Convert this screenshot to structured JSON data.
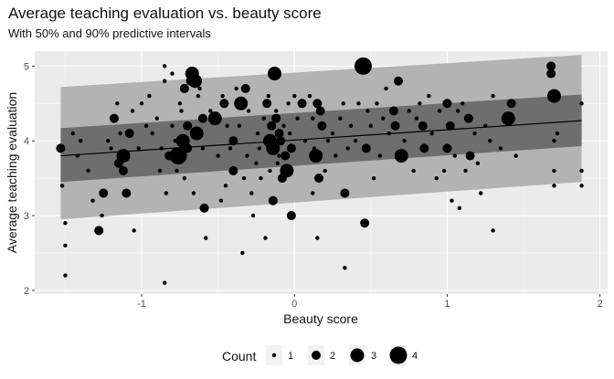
{
  "chart_data": {
    "type": "scatter",
    "title": "Average teaching evaluation vs. beauty score",
    "subtitle": "With 50% and 90% predictive intervals",
    "xlabel": "Beauty score",
    "ylabel": "Average teaching evaluation",
    "xlim": [
      -1.7,
      2.05
    ],
    "ylim": [
      1.95,
      5.2
    ],
    "x_ticks": [
      -1,
      0,
      1,
      2
    ],
    "y_ticks": [
      2,
      3,
      4,
      5
    ],
    "grid": true,
    "fit_line": {
      "x": [
        -1.53,
        1.88
      ],
      "y": [
        3.8,
        4.27
      ]
    },
    "intervals": [
      {
        "level": "90%",
        "x": [
          -1.53,
          1.88
        ],
        "lower": [
          2.95,
          3.45
        ],
        "upper": [
          4.72,
          5.15
        ]
      },
      {
        "level": "50%",
        "x": [
          -1.53,
          1.88
        ],
        "lower": [
          3.45,
          3.93
        ],
        "upper": [
          4.17,
          4.62
        ]
      }
    ],
    "legend": {
      "title": "Count",
      "position": "bottom",
      "sizes": [
        1,
        2,
        3,
        4
      ],
      "labels": [
        "1",
        "2",
        "3",
        "4"
      ]
    },
    "points": [
      [
        -1.53,
        3.9,
        2
      ],
      [
        -1.52,
        3.4,
        1
      ],
      [
        -1.5,
        2.9,
        1
      ],
      [
        -1.5,
        2.6,
        1
      ],
      [
        -1.5,
        2.2,
        1
      ],
      [
        -1.45,
        4.1,
        1
      ],
      [
        -1.42,
        3.8,
        1
      ],
      [
        -1.4,
        4.0,
        1
      ],
      [
        -1.35,
        3.6,
        1
      ],
      [
        -1.32,
        3.2,
        1
      ],
      [
        -1.28,
        2.8,
        2
      ],
      [
        -1.26,
        3.0,
        1
      ],
      [
        -1.25,
        3.3,
        2
      ],
      [
        -1.22,
        4.0,
        1
      ],
      [
        -1.2,
        3.9,
        1
      ],
      [
        -1.18,
        4.3,
        2
      ],
      [
        -1.16,
        4.5,
        1
      ],
      [
        -1.15,
        3.7,
        2
      ],
      [
        -1.14,
        4.1,
        1
      ],
      [
        -1.12,
        3.6,
        2
      ],
      [
        -1.12,
        3.8,
        3
      ],
      [
        -1.1,
        3.3,
        2
      ],
      [
        -1.08,
        4.1,
        2
      ],
      [
        -1.06,
        4.4,
        1
      ],
      [
        -1.05,
        2.8,
        1
      ],
      [
        -1.02,
        3.9,
        1
      ],
      [
        -1.0,
        4.5,
        1
      ],
      [
        -0.97,
        4.2,
        1
      ],
      [
        -0.95,
        4.6,
        1
      ],
      [
        -0.93,
        4.1,
        1
      ],
      [
        -0.9,
        4.3,
        1
      ],
      [
        -0.88,
        3.6,
        1
      ],
      [
        -0.87,
        3.9,
        1
      ],
      [
        -0.85,
        4.8,
        1
      ],
      [
        -0.85,
        5.0,
        1
      ],
      [
        -0.84,
        3.3,
        1
      ],
      [
        -0.82,
        3.8,
        2
      ],
      [
        -0.8,
        4.2,
        1
      ],
      [
        -0.8,
        4.9,
        1
      ],
      [
        -0.78,
        4.0,
        1
      ],
      [
        -0.77,
        3.6,
        1
      ],
      [
        -0.76,
        3.8,
        4
      ],
      [
        -0.75,
        4.5,
        1
      ],
      [
        -0.74,
        4.4,
        1
      ],
      [
        -0.73,
        4.0,
        3
      ],
      [
        -0.72,
        4.7,
        2
      ],
      [
        -0.72,
        3.5,
        1
      ],
      [
        -0.7,
        3.9,
        2
      ],
      [
        -0.7,
        4.2,
        2
      ],
      [
        -0.68,
        4.8,
        2
      ],
      [
        -0.67,
        4.9,
        3
      ],
      [
        -0.66,
        3.3,
        1
      ],
      [
        -0.65,
        4.8,
        3
      ],
      [
        -0.64,
        4.1,
        3
      ],
      [
        -0.63,
        4.6,
        1
      ],
      [
        -0.62,
        4.7,
        1
      ],
      [
        -0.6,
        4.3,
        2
      ],
      [
        -0.6,
        3.9,
        1
      ],
      [
        -0.59,
        3.1,
        2
      ],
      [
        -0.58,
        2.7,
        1
      ],
      [
        -0.55,
        4.4,
        1
      ],
      [
        -0.52,
        4.3,
        3
      ],
      [
        -0.5,
        3.8,
        1
      ],
      [
        -0.48,
        3.2,
        1
      ],
      [
        -0.47,
        4.6,
        1
      ],
      [
        -0.46,
        4.5,
        2
      ],
      [
        -0.45,
        3.4,
        1
      ],
      [
        -0.44,
        4.2,
        1
      ],
      [
        -0.42,
        3.9,
        1
      ],
      [
        -0.4,
        4.0,
        2
      ],
      [
        -0.4,
        3.6,
        2
      ],
      [
        -0.38,
        4.7,
        1
      ],
      [
        -0.36,
        4.2,
        1
      ],
      [
        -0.35,
        4.5,
        3
      ],
      [
        -0.34,
        2.5,
        1
      ],
      [
        -0.33,
        3.5,
        1
      ],
      [
        -0.32,
        4.7,
        2
      ],
      [
        -0.31,
        3.8,
        1
      ],
      [
        -0.3,
        4.4,
        1
      ],
      [
        -0.28,
        3.3,
        1
      ],
      [
        -0.27,
        3.0,
        1
      ],
      [
        -0.25,
        3.7,
        1
      ],
      [
        -0.24,
        4.1,
        1
      ],
      [
        -0.23,
        3.9,
        1
      ],
      [
        -0.22,
        3.5,
        1
      ],
      [
        -0.2,
        4.3,
        1
      ],
      [
        -0.19,
        2.7,
        1
      ],
      [
        -0.18,
        4.5,
        2
      ],
      [
        -0.17,
        4.6,
        1
      ],
      [
        -0.16,
        3.6,
        1
      ],
      [
        -0.16,
        4.0,
        3
      ],
      [
        -0.15,
        4.2,
        2
      ],
      [
        -0.14,
        3.9,
        3
      ],
      [
        -0.14,
        3.2,
        2
      ],
      [
        -0.13,
        4.9,
        3
      ],
      [
        -0.12,
        4.4,
        1
      ],
      [
        -0.12,
        4.3,
        2
      ],
      [
        -0.11,
        3.7,
        1
      ],
      [
        -0.1,
        4.1,
        2
      ],
      [
        -0.1,
        3.8,
        1
      ],
      [
        -0.09,
        4.0,
        2
      ],
      [
        -0.08,
        3.5,
        2
      ],
      [
        -0.07,
        4.2,
        1
      ],
      [
        -0.06,
        3.8,
        2
      ],
      [
        -0.05,
        3.6,
        3
      ],
      [
        -0.04,
        4.5,
        1
      ],
      [
        -0.03,
        4.1,
        1
      ],
      [
        -0.02,
        3.9,
        2
      ],
      [
        -0.02,
        3.0,
        2
      ],
      [
        0.0,
        4.6,
        1
      ],
      [
        0.02,
        4.3,
        1
      ],
      [
        0.05,
        4.5,
        2
      ],
      [
        0.07,
        4.0,
        1
      ],
      [
        0.1,
        4.6,
        1
      ],
      [
        0.12,
        4.3,
        1
      ],
      [
        0.13,
        3.9,
        1
      ],
      [
        0.14,
        3.8,
        3
      ],
      [
        0.15,
        4.5,
        2
      ],
      [
        0.15,
        2.7,
        1
      ],
      [
        0.16,
        3.5,
        2
      ],
      [
        0.17,
        4.4,
        2
      ],
      [
        0.18,
        4.2,
        2
      ],
      [
        0.2,
        3.6,
        1
      ],
      [
        0.22,
        4.0,
        1
      ],
      [
        0.25,
        4.1,
        1
      ],
      [
        0.27,
        3.8,
        1
      ],
      [
        0.3,
        4.3,
        1
      ],
      [
        0.32,
        4.5,
        1
      ],
      [
        0.33,
        3.3,
        2
      ],
      [
        0.33,
        2.3,
        1
      ],
      [
        0.35,
        3.9,
        1
      ],
      [
        0.37,
        4.2,
        1
      ],
      [
        0.4,
        4.0,
        1
      ],
      [
        0.42,
        4.5,
        1
      ],
      [
        0.45,
        5.0,
        4
      ],
      [
        0.46,
        2.9,
        2
      ],
      [
        0.47,
        3.9,
        2
      ],
      [
        0.48,
        4.4,
        1
      ],
      [
        0.5,
        4.2,
        1
      ],
      [
        0.52,
        3.5,
        1
      ],
      [
        0.54,
        4.5,
        1
      ],
      [
        0.56,
        3.8,
        1
      ],
      [
        0.58,
        4.3,
        1
      ],
      [
        0.6,
        4.7,
        1
      ],
      [
        0.62,
        4.1,
        1
      ],
      [
        0.65,
        4.4,
        2
      ],
      [
        0.66,
        4.2,
        2
      ],
      [
        0.68,
        4.8,
        2
      ],
      [
        0.7,
        3.8,
        3
      ],
      [
        0.72,
        4.0,
        1
      ],
      [
        0.75,
        4.4,
        1
      ],
      [
        0.78,
        3.6,
        1
      ],
      [
        0.8,
        4.3,
        1
      ],
      [
        0.82,
        4.5,
        1
      ],
      [
        0.84,
        4.2,
        2
      ],
      [
        0.85,
        3.9,
        2
      ],
      [
        0.88,
        4.6,
        1
      ],
      [
        0.9,
        4.1,
        1
      ],
      [
        0.93,
        3.5,
        1
      ],
      [
        0.95,
        4.4,
        1
      ],
      [
        0.98,
        3.6,
        1
      ],
      [
        1.0,
        4.5,
        2
      ],
      [
        1.0,
        3.9,
        2
      ],
      [
        1.02,
        4.2,
        2
      ],
      [
        1.03,
        3.2,
        1
      ],
      [
        1.05,
        3.8,
        1
      ],
      [
        1.07,
        4.4,
        1
      ],
      [
        1.08,
        3.1,
        1
      ],
      [
        1.1,
        4.5,
        1
      ],
      [
        1.12,
        3.6,
        1
      ],
      [
        1.14,
        4.3,
        2
      ],
      [
        1.15,
        3.8,
        2
      ],
      [
        1.18,
        4.1,
        1
      ],
      [
        1.2,
        3.7,
        1
      ],
      [
        1.22,
        3.3,
        1
      ],
      [
        1.25,
        4.2,
        1
      ],
      [
        1.28,
        4.0,
        1
      ],
      [
        1.3,
        4.6,
        1
      ],
      [
        1.35,
        3.9,
        1
      ],
      [
        1.4,
        4.3,
        3
      ],
      [
        1.42,
        4.5,
        2
      ],
      [
        1.45,
        3.8,
        1
      ],
      [
        1.68,
        5.0,
        2
      ],
      [
        1.68,
        4.9,
        2
      ],
      [
        1.7,
        4.6,
        3
      ],
      [
        1.7,
        4.0,
        1
      ],
      [
        1.7,
        3.6,
        1
      ],
      [
        1.7,
        3.4,
        1
      ],
      [
        1.72,
        4.1,
        1
      ],
      [
        1.88,
        3.6,
        1
      ],
      [
        1.88,
        4.5,
        1
      ],
      [
        1.88,
        3.4,
        1
      ],
      [
        1.3,
        2.8,
        1
      ],
      [
        -0.85,
        2.1,
        1
      ],
      [
        0.12,
        3.3,
        1
      ]
    ]
  }
}
